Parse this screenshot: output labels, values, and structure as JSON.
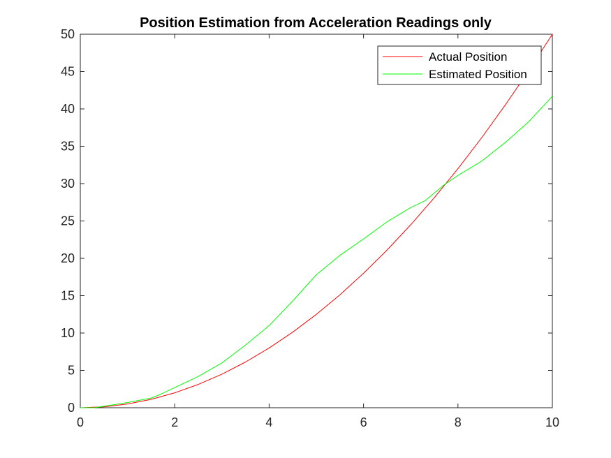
{
  "chart_data": {
    "type": "line",
    "title": "Position Estimation from Acceleration Readings only",
    "xlabel": "",
    "ylabel": "",
    "xlim": [
      0,
      10
    ],
    "ylim": [
      0,
      50
    ],
    "xticks": [
      0,
      2,
      4,
      6,
      8,
      10
    ],
    "yticks": [
      0,
      5,
      10,
      15,
      20,
      25,
      30,
      35,
      40,
      45,
      50
    ],
    "grid": false,
    "legend_position": "top-right",
    "series": [
      {
        "name": "Actual Position",
        "color": "#ff0000",
        "x": [
          0,
          0.5,
          1,
          1.5,
          2,
          2.5,
          3,
          3.5,
          4,
          4.5,
          5,
          5.5,
          6,
          6.5,
          7,
          7.5,
          8,
          8.5,
          9,
          9.5,
          10
        ],
        "y": [
          0,
          0.125,
          0.5,
          1.125,
          2,
          3.125,
          4.5,
          6.125,
          8,
          10.125,
          12.5,
          15.125,
          18,
          21.125,
          24.5,
          28.125,
          32,
          36.125,
          40.5,
          45.125,
          50
        ]
      },
      {
        "name": "Estimated Position",
        "color": "#00ff00",
        "x": [
          0,
          0.3,
          0.5,
          1,
          1.5,
          1.7,
          2,
          2.5,
          3,
          3.5,
          4,
          4.5,
          5,
          5.5,
          6,
          6.5,
          7,
          7.3,
          7.7,
          8,
          8.5,
          9,
          9.5,
          10
        ],
        "y": [
          0,
          0,
          0.2,
          0.7,
          1.3,
          1.8,
          2.7,
          4.2,
          6.0,
          8.4,
          11.0,
          14.3,
          17.8,
          20.4,
          22.6,
          24.9,
          26.8,
          27.7,
          29.8,
          31.1,
          33.0,
          35.5,
          38.3,
          41.7
        ]
      }
    ]
  }
}
